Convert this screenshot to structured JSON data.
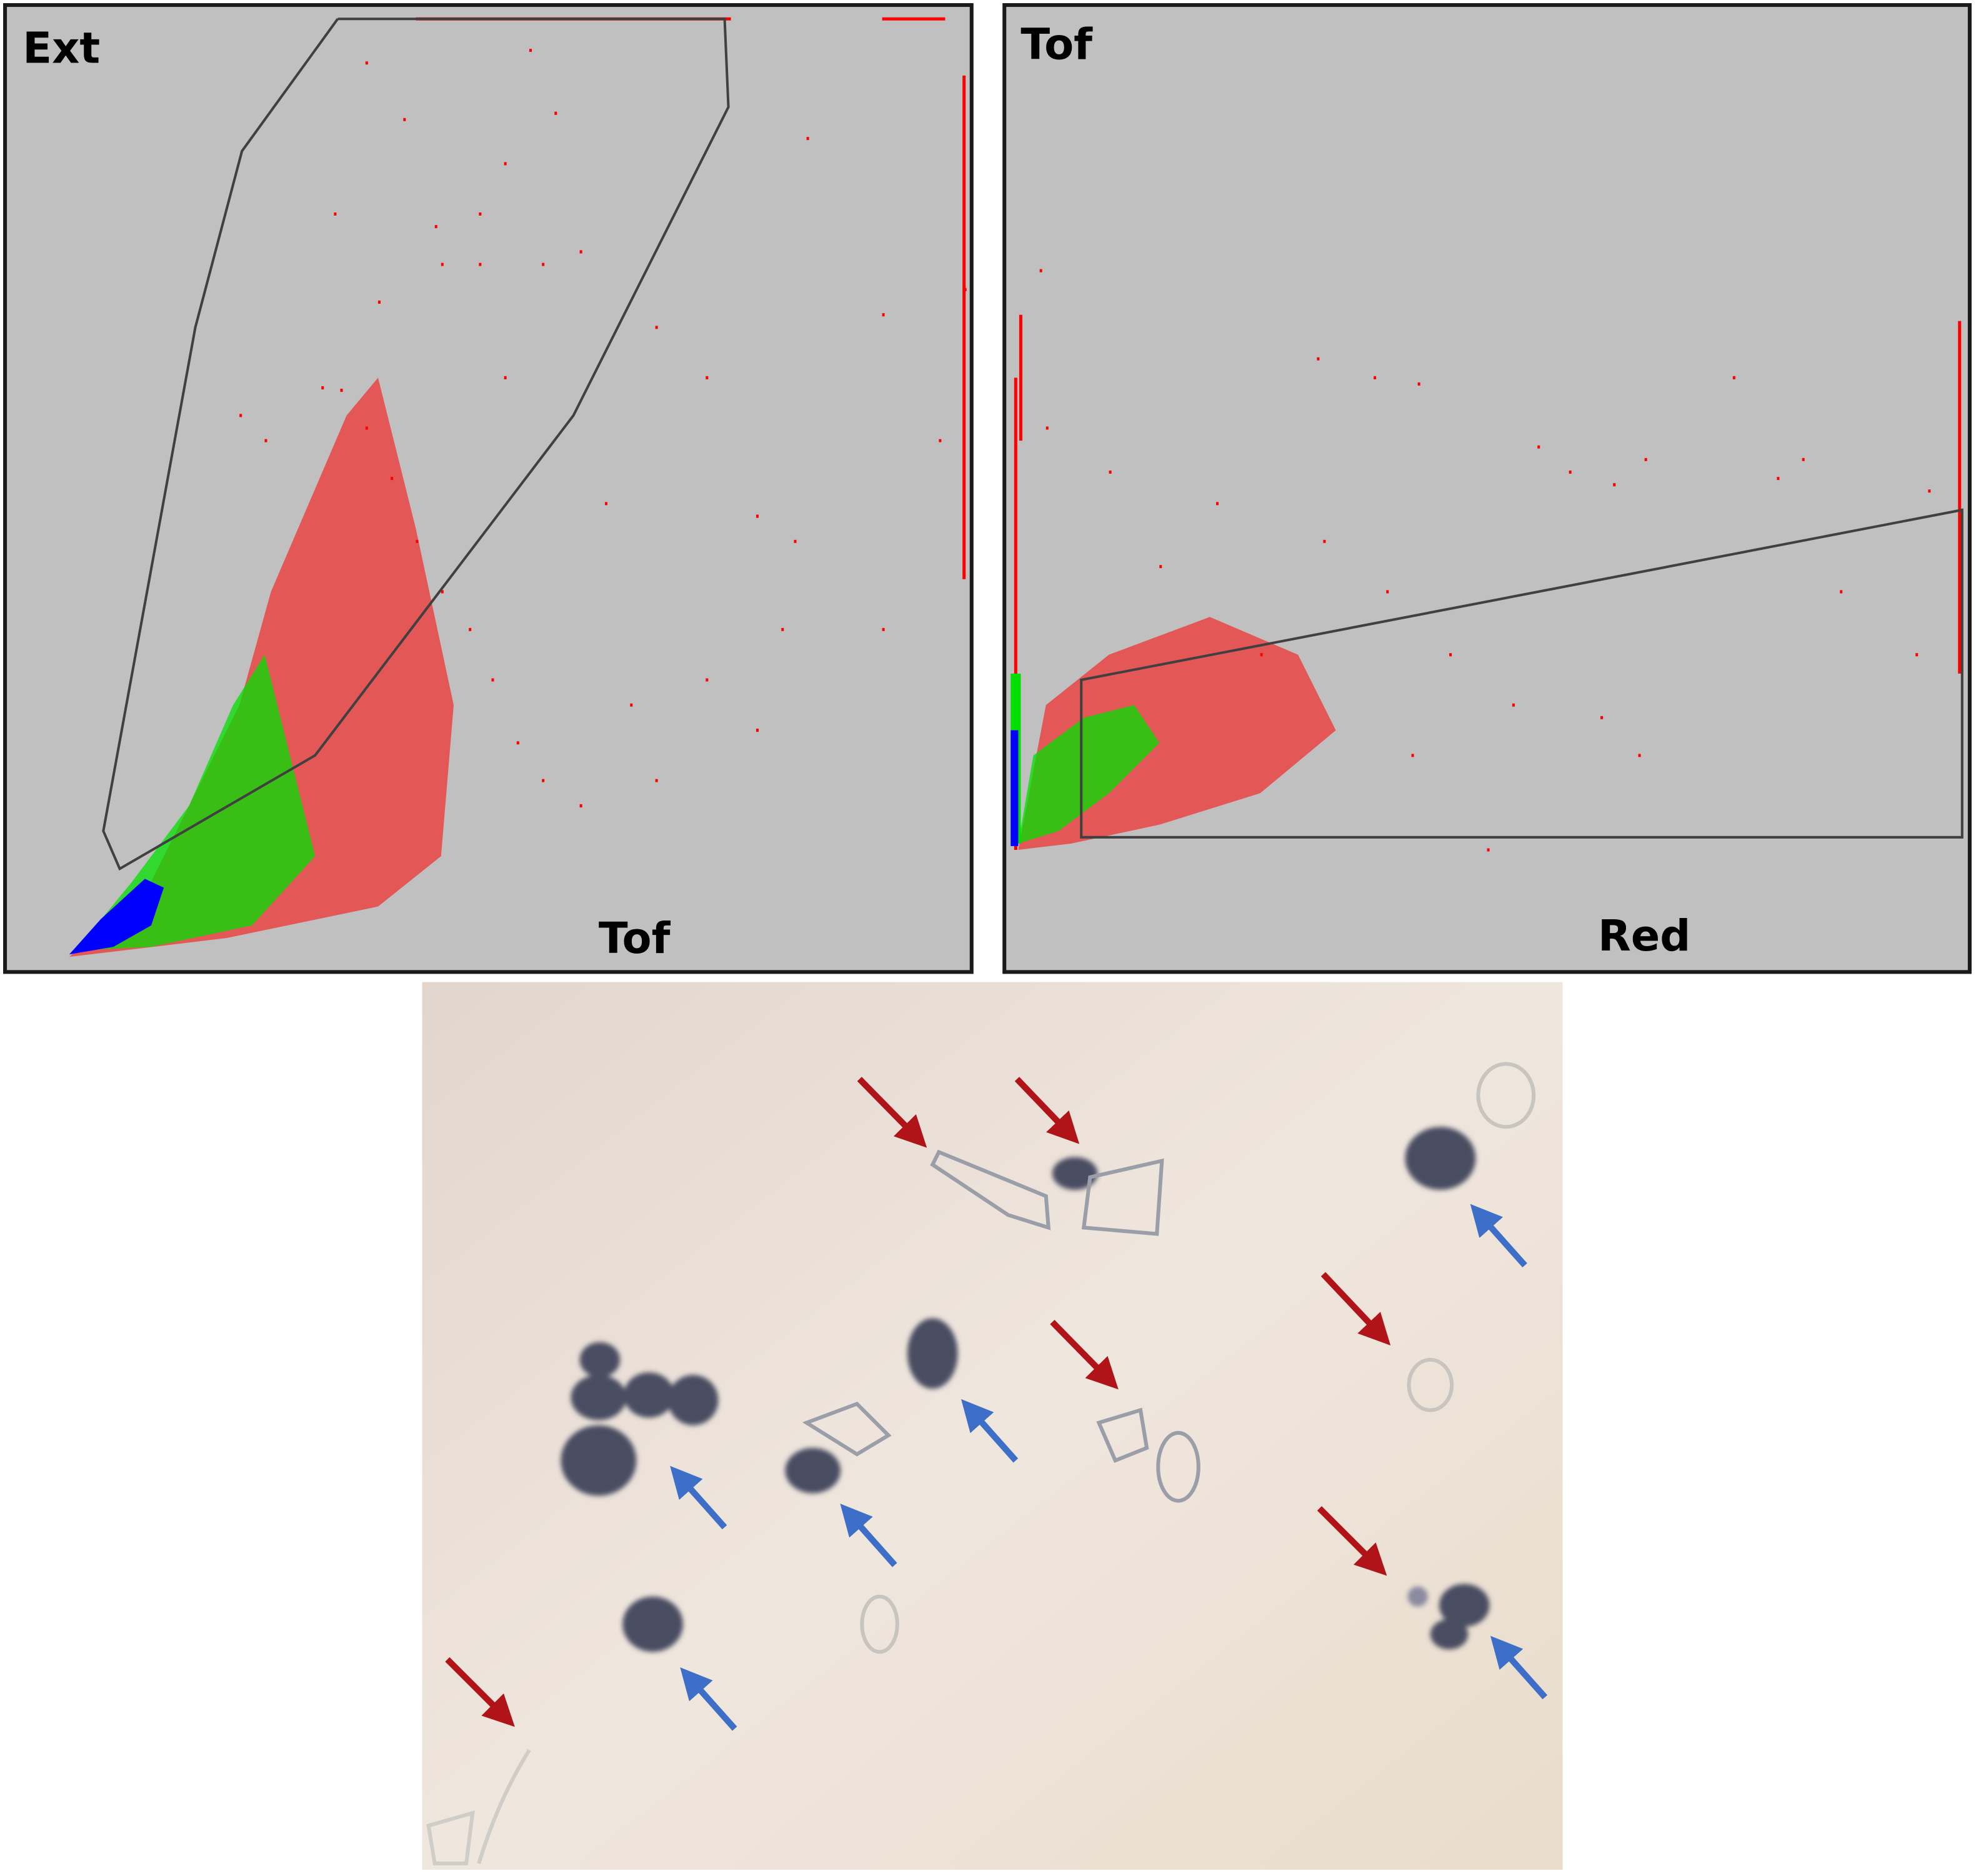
{
  "panels": [
    {
      "y_label": "Ext",
      "x_label": "Tof"
    },
    {
      "y_label": "Tof",
      "x_label": "Red"
    }
  ]
}
